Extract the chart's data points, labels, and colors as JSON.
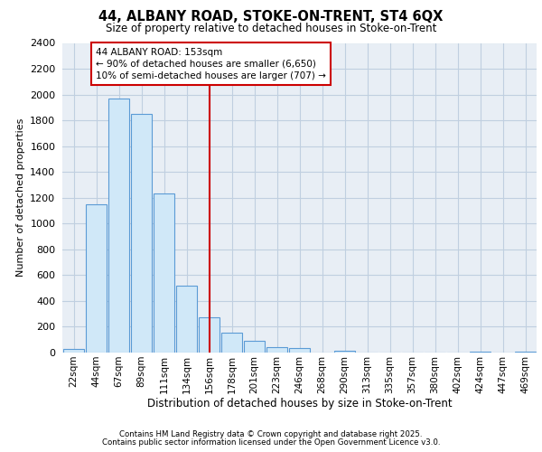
{
  "title_line1": "44, ALBANY ROAD, STOKE-ON-TRENT, ST4 6QX",
  "title_line2": "Size of property relative to detached houses in Stoke-on-Trent",
  "xlabel": "Distribution of detached houses by size in Stoke-on-Trent",
  "ylabel": "Number of detached properties",
  "categories": [
    "22sqm",
    "44sqm",
    "67sqm",
    "89sqm",
    "111sqm",
    "134sqm",
    "156sqm",
    "178sqm",
    "201sqm",
    "223sqm",
    "246sqm",
    "268sqm",
    "290sqm",
    "313sqm",
    "335sqm",
    "357sqm",
    "380sqm",
    "402sqm",
    "424sqm",
    "447sqm",
    "469sqm"
  ],
  "values": [
    25,
    1150,
    1970,
    1850,
    1230,
    520,
    270,
    155,
    90,
    45,
    38,
    2,
    15,
    2,
    1,
    1,
    1,
    1,
    10,
    1,
    5
  ],
  "bar_color": "#d0e8f8",
  "bar_edge_color": "#5b9bd5",
  "vline_x_idx": 6,
  "vline_color": "#cc0000",
  "annotation_text_line1": "44 ALBANY ROAD: 153sqm",
  "annotation_text_line2": "← 90% of detached houses are smaller (6,650)",
  "annotation_text_line3": "10% of semi-detached houses are larger (707) →",
  "ylim": [
    0,
    2400
  ],
  "yticks": [
    0,
    200,
    400,
    600,
    800,
    1000,
    1200,
    1400,
    1600,
    1800,
    2000,
    2200,
    2400
  ],
  "grid_color": "#c0cfe0",
  "background_color": "#e8eef5",
  "footer_line1": "Contains HM Land Registry data © Crown copyright and database right 2025.",
  "footer_line2": "Contains public sector information licensed under the Open Government Licence v3.0."
}
